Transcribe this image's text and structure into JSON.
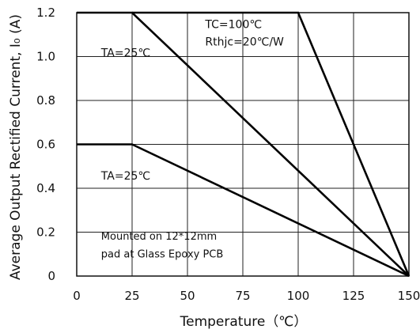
{
  "chart_data": {
    "type": "line",
    "title": "",
    "xlabel": "Temperature（℃）",
    "ylabel": "Average Output Rectified Current, I₀ (A)",
    "xlim": [
      0,
      150
    ],
    "ylim": [
      0,
      1.2
    ],
    "x_ticks": [
      "0",
      "25",
      "50",
      "75",
      "100",
      "125",
      "150"
    ],
    "y_ticks": [
      "0",
      "0.2",
      "0.4",
      "0.6",
      "0.8",
      "1.0",
      "1.2"
    ],
    "grid": true,
    "legend": "none",
    "series": [
      {
        "x": [
          0,
          25,
          150
        ],
        "y": [
          1.2,
          1.2,
          0
        ]
      },
      {
        "x": [
          25,
          100,
          150
        ],
        "y": [
          1.2,
          1.2,
          0
        ]
      },
      {
        "x": [
          0,
          25,
          150
        ],
        "y": [
          0.6,
          0.6,
          0
        ]
      }
    ],
    "annotations": [
      {
        "text": "TA=25℃",
        "x": 11,
        "y": 1.0
      },
      {
        "text": "TC=100℃",
        "x": 58,
        "y": 1.13
      },
      {
        "text": "Rthjc=20℃/W",
        "x": 58,
        "y": 1.05
      },
      {
        "text": "TA=25℃",
        "x": 11,
        "y": 0.44
      },
      {
        "text": "Mounted on 12*12mm",
        "x": 11,
        "y": 0.165
      },
      {
        "text": "pad at Glass Epoxy PCB",
        "x": 11,
        "y": 0.085
      }
    ]
  }
}
